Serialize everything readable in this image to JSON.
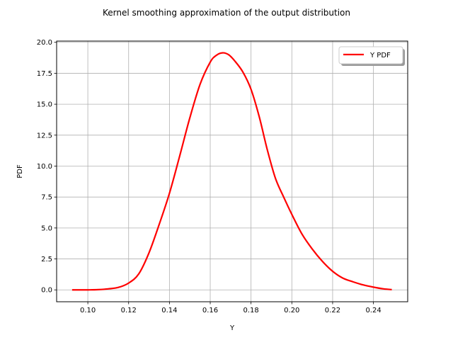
{
  "chart_data": {
    "type": "line",
    "title": "Kernel smoothing approximation of the output distribution",
    "xlabel": "Y",
    "ylabel": "PDF",
    "xlim": [
      0.0847,
      0.2568
    ],
    "ylim": [
      -0.96,
      20.1
    ],
    "xticks": [
      0.1,
      0.12,
      0.14,
      0.16,
      0.18,
      0.2,
      0.22,
      0.24
    ],
    "xtick_labels": [
      "0.10",
      "0.12",
      "0.14",
      "0.16",
      "0.18",
      "0.20",
      "0.22",
      "0.24"
    ],
    "yticks": [
      0.0,
      2.5,
      5.0,
      7.5,
      10.0,
      12.5,
      15.0,
      17.5,
      20.0
    ],
    "ytick_labels": [
      "0.0",
      "2.5",
      "5.0",
      "7.5",
      "10.0",
      "12.5",
      "15.0",
      "17.5",
      "20.0"
    ],
    "grid": true,
    "legend_position": "top-right",
    "series": [
      {
        "name": "Y PDF",
        "color": "#ff0000",
        "x": [
          0.0923,
          0.1,
          0.105,
          0.11,
          0.115,
          0.12,
          0.125,
          0.13,
          0.135,
          0.14,
          0.145,
          0.15,
          0.155,
          0.16,
          0.163,
          0.166,
          0.169,
          0.172,
          0.176,
          0.18,
          0.184,
          0.188,
          0.192,
          0.196,
          0.2,
          0.205,
          0.21,
          0.215,
          0.22,
          0.225,
          0.23,
          0.235,
          0.24,
          0.245,
          0.249
        ],
        "y": [
          0.0,
          0.0,
          0.02,
          0.08,
          0.2,
          0.55,
          1.3,
          3.0,
          5.3,
          7.8,
          10.8,
          13.9,
          16.6,
          18.4,
          18.95,
          19.15,
          19.0,
          18.5,
          17.6,
          16.2,
          14.0,
          11.3,
          9.0,
          7.5,
          6.1,
          4.5,
          3.3,
          2.3,
          1.5,
          0.95,
          0.65,
          0.4,
          0.22,
          0.08,
          0.02
        ]
      }
    ]
  }
}
